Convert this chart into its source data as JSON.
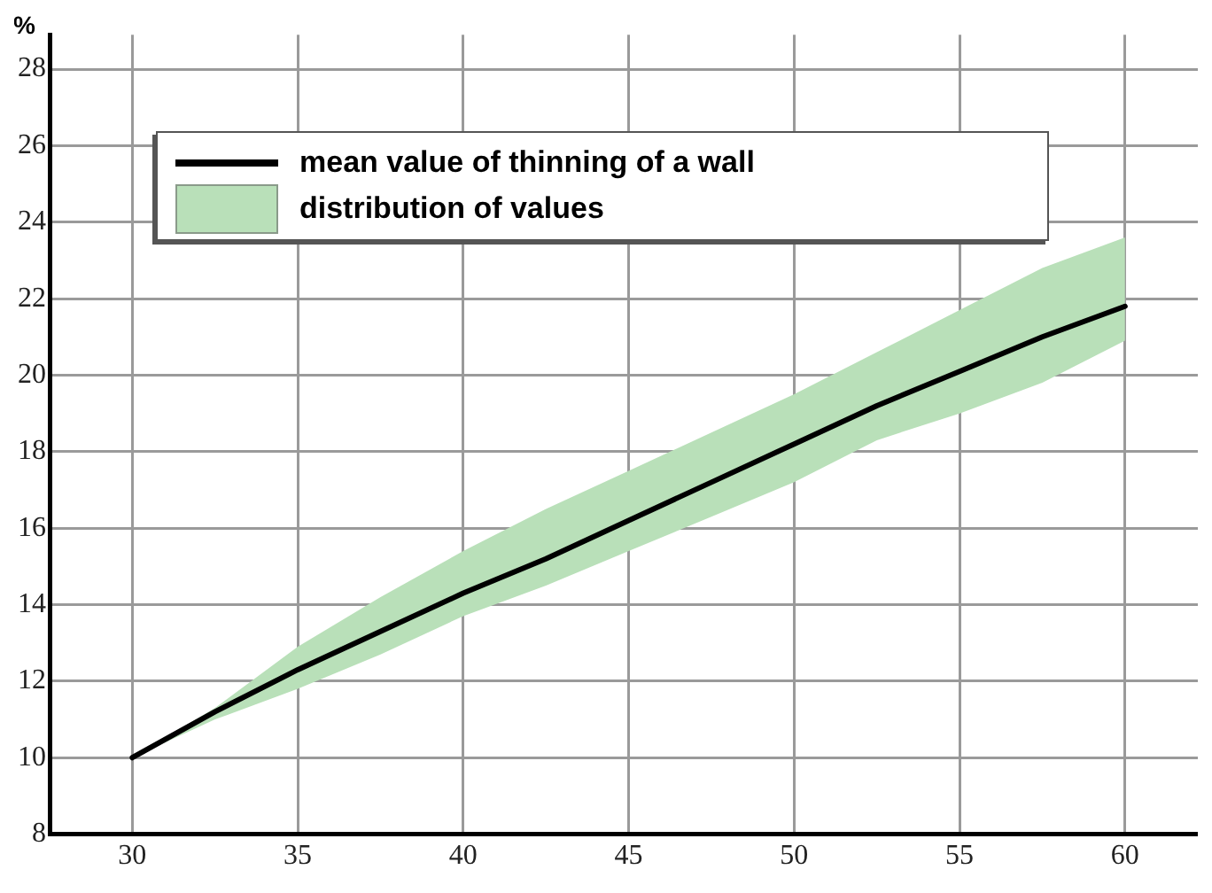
{
  "chart_data": {
    "type": "line",
    "ylabel": "%",
    "xlim": [
      27.5,
      62.2
    ],
    "xticks": [
      30,
      35,
      40,
      45,
      50,
      55,
      60
    ],
    "ylim": [
      8,
      28.9
    ],
    "yticks": [
      8,
      10,
      12,
      14,
      16,
      18,
      20,
      22,
      24,
      26,
      28
    ],
    "grid": true,
    "legend": "top left",
    "marker": "none",
    "line_style": "solid",
    "annotations": [
      "distribution of values"
    ],
    "series": [
      {
        "name": "mean value of thinning of a wall",
        "type": "line",
        "color": "#000000",
        "x": [
          30,
          32.5,
          35,
          37.5,
          40,
          42.5,
          45,
          47.5,
          50,
          52.5,
          55,
          57.5,
          60
        ],
        "values": [
          10,
          11.2,
          12.3,
          13.3,
          14.3,
          15.2,
          16.2,
          17.2,
          18.2,
          19.2,
          20.1,
          21,
          21.8
        ],
        "lower": [
          10,
          11,
          11.8,
          12.7,
          13.7,
          14.5,
          15.4,
          16.3,
          17.2,
          18.3,
          19,
          19.8,
          20.9
        ],
        "upper": [
          10,
          11.3,
          12.9,
          14.2,
          15.4,
          16.5,
          17.5,
          18.5,
          19.5,
          20.6,
          21.7,
          22.8,
          23.6
        ]
      }
    ]
  }
}
